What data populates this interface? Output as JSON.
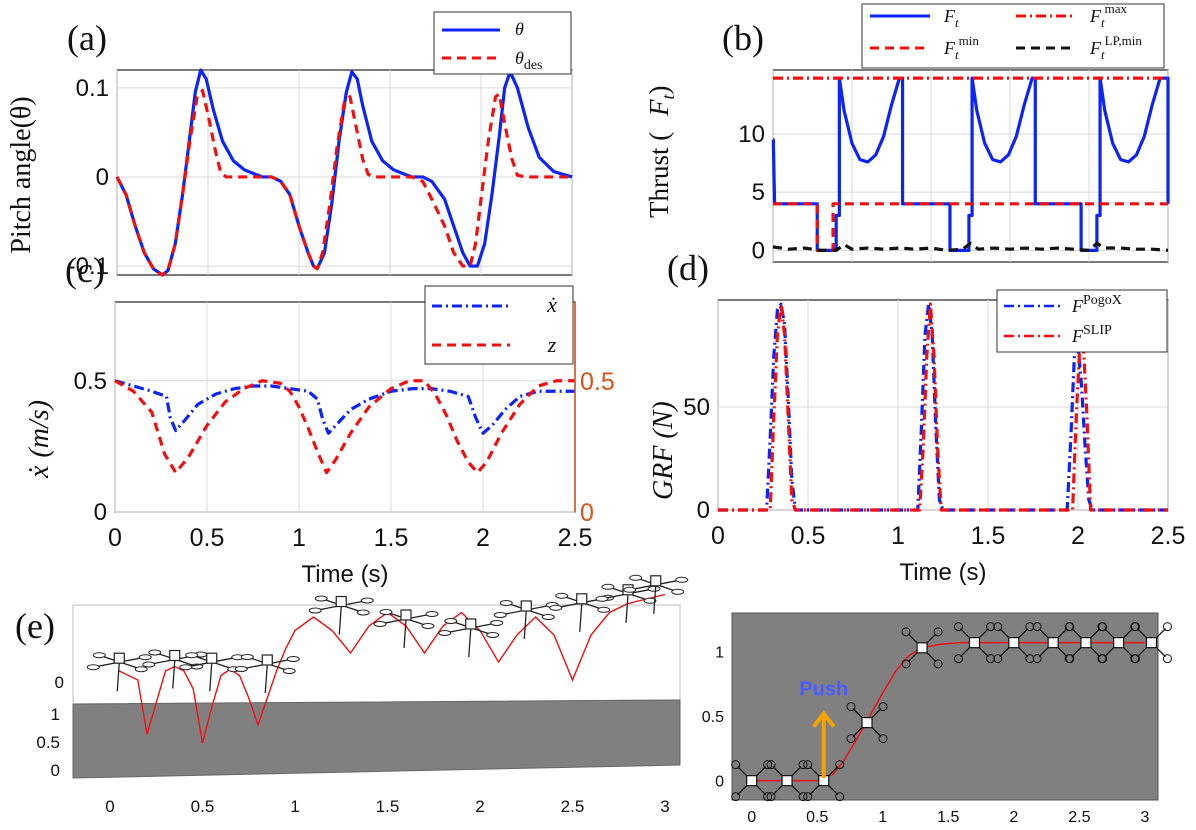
{
  "colors": {
    "blue": "#0b24fb",
    "red": "#f01010",
    "black": "#111111",
    "orange_axis": "#d95319",
    "gray_ground": "#808080",
    "push_text": "#4a5cff",
    "arrow": "#f4a300"
  },
  "chart_data": [
    {
      "id": "a",
      "type": "line",
      "panel_label": "(a)",
      "ylabel": "Pitch angle(θ)",
      "xlabel": "",
      "xlim": [
        0,
        2.5
      ],
      "ylim": [
        -0.11,
        0.12
      ],
      "yticks": [
        "-0.1",
        "0",
        "0.1"
      ],
      "ytick_values": [
        -0.1,
        0,
        0.1
      ],
      "legend": {
        "placement": "top-right",
        "entries": [
          "θ",
          "θdes"
        ]
      },
      "series": [
        {
          "name": "θ",
          "style": "solid",
          "color": "blue",
          "x": [
            0,
            0.05,
            0.1,
            0.15,
            0.2,
            0.25,
            0.28,
            0.32,
            0.36,
            0.4,
            0.43,
            0.46,
            0.49,
            0.53,
            0.58,
            0.64,
            0.7,
            0.76,
            0.8,
            0.85,
            0.9,
            0.95,
            1.0,
            1.05,
            1.08,
            1.1,
            1.14,
            1.18,
            1.22,
            1.26,
            1.29,
            1.32,
            1.35,
            1.4,
            1.46,
            1.52,
            1.58,
            1.62,
            1.68,
            1.73,
            1.8,
            1.85,
            1.9,
            1.94,
            1.98,
            2.02,
            2.06,
            2.1,
            2.13,
            2.16,
            2.2,
            2.26,
            2.32,
            2.4,
            2.5
          ],
          "y": [
            0,
            -0.02,
            -0.055,
            -0.085,
            -0.103,
            -0.11,
            -0.105,
            -0.075,
            -0.02,
            0.045,
            0.095,
            0.12,
            0.11,
            0.075,
            0.04,
            0.018,
            0.008,
            0.003,
            0,
            0,
            -0.005,
            -0.02,
            -0.055,
            -0.085,
            -0.1,
            -0.103,
            -0.085,
            -0.03,
            0.04,
            0.095,
            0.118,
            0.11,
            0.08,
            0.04,
            0.018,
            0.008,
            0.003,
            0,
            0,
            -0.005,
            -0.025,
            -0.055,
            -0.085,
            -0.1,
            -0.1,
            -0.075,
            -0.02,
            0.045,
            0.1,
            0.118,
            0.1,
            0.055,
            0.022,
            0.006,
            0
          ]
        },
        {
          "name": "θdes",
          "style": "dashed",
          "color": "red",
          "x": [
            0,
            0.05,
            0.1,
            0.15,
            0.2,
            0.25,
            0.28,
            0.32,
            0.36,
            0.4,
            0.44,
            0.47,
            0.5,
            0.54,
            0.57,
            0.6,
            0.7,
            0.8,
            0.85,
            0.9,
            0.95,
            1.0,
            1.05,
            1.08,
            1.1,
            1.13,
            1.17,
            1.21,
            1.25,
            1.28,
            1.31,
            1.35,
            1.38,
            1.41,
            1.5,
            1.62,
            1.68,
            1.73,
            1.8,
            1.85,
            1.9,
            1.94,
            1.97,
            2.0,
            2.04,
            2.08,
            2.1,
            2.13,
            2.17,
            2.2,
            2.24,
            2.3,
            2.5
          ],
          "y": [
            0,
            -0.02,
            -0.055,
            -0.085,
            -0.103,
            -0.11,
            -0.105,
            -0.075,
            -0.02,
            0.04,
            0.09,
            0.097,
            0.07,
            0.03,
            0.005,
            0,
            0,
            0,
            0,
            -0.005,
            -0.02,
            -0.055,
            -0.085,
            -0.1,
            -0.103,
            -0.085,
            -0.03,
            0.035,
            0.085,
            0.09,
            0.06,
            0.02,
            0.003,
            0,
            0,
            0,
            -0.005,
            -0.025,
            -0.055,
            -0.085,
            -0.1,
            -0.1,
            -0.075,
            -0.025,
            0.04,
            0.09,
            0.093,
            0.06,
            0.02,
            0.002,
            0,
            0,
            0
          ]
        }
      ]
    },
    {
      "id": "b",
      "type": "line",
      "panel_label": "(b)",
      "ylabel": "Thrust (Ft)",
      "xlabel": "",
      "xlim": [
        0,
        2.5
      ],
      "ylim": [
        -1,
        15.5
      ],
      "yticks": [
        "0",
        "5",
        "10"
      ],
      "ytick_values": [
        0,
        5,
        10
      ],
      "legend": {
        "placement": "top-right",
        "entries": [
          "Ft",
          "Ftmax",
          "Ftmin",
          "FtLP,min"
        ]
      },
      "series": [
        {
          "name": "Ft",
          "style": "solid",
          "color": "blue",
          "x": [
            0,
            0.002,
            0.01,
            0.28,
            0.28,
            0.4,
            0.4,
            0.42,
            0.42,
            0.45,
            0.5,
            0.55,
            0.6,
            0.65,
            0.7,
            0.75,
            0.8,
            0.8,
            0.82,
            0.82,
            1.12,
            1.12,
            1.24,
            1.24,
            1.26,
            1.26,
            1.29,
            1.34,
            1.39,
            1.44,
            1.49,
            1.54,
            1.59,
            1.64,
            1.64,
            1.66,
            1.66,
            1.95,
            1.95,
            2.05,
            2.05,
            2.07,
            2.07,
            2.1,
            2.15,
            2.2,
            2.25,
            2.3,
            2.35,
            2.4,
            2.45,
            2.45,
            2.5,
            2.5
          ],
          "y": [
            9.5,
            9.5,
            4,
            4,
            0,
            0,
            3,
            3,
            14.8,
            12,
            9.2,
            7.8,
            7.6,
            8.2,
            9.8,
            12.5,
            14.8,
            14.8,
            14.8,
            4,
            4,
            0,
            0,
            3,
            3,
            14.8,
            12,
            9.2,
            7.8,
            7.6,
            8.2,
            9.8,
            12.5,
            14.8,
            14.8,
            14.8,
            4,
            4,
            0,
            0,
            3,
            3,
            14.8,
            12,
            9.2,
            7.8,
            7.6,
            8.2,
            9.8,
            12.5,
            14.8,
            14.8,
            14.8,
            4
          ]
        },
        {
          "name": "Ftmax",
          "style": "dashdot",
          "color": "red",
          "x": [
            0,
            2.5
          ],
          "y": [
            14.8,
            14.8
          ]
        },
        {
          "name": "Ftmin",
          "style": "dashed",
          "color": "red",
          "x": [
            0,
            0.28,
            0.28,
            0.38,
            0.38,
            2.5
          ],
          "y": [
            4,
            4,
            0,
            0,
            4,
            4
          ]
        },
        {
          "name": "FtLP,min",
          "style": "dashed",
          "color": "black",
          "x": [
            0,
            0.1,
            0.2,
            0.3,
            0.4,
            0.45,
            0.5,
            0.6,
            0.7,
            0.8,
            0.9,
            1.0,
            1.1,
            1.2,
            1.25,
            1.3,
            1.4,
            1.5,
            1.6,
            1.7,
            1.8,
            1.9,
            2.0,
            2.05,
            2.1,
            2.2,
            2.3,
            2.4,
            2.5
          ],
          "y": [
            0.3,
            0.1,
            0.2,
            0,
            0,
            0.5,
            0.1,
            0.2,
            0.1,
            0.2,
            0.1,
            0.2,
            0,
            0.1,
            0.6,
            0.1,
            0.2,
            0.1,
            0.2,
            0.1,
            0.2,
            0.1,
            0,
            0.6,
            0.2,
            0.2,
            0.1,
            0.1,
            0
          ]
        }
      ]
    },
    {
      "id": "c",
      "type": "line",
      "panel_label": "(c)",
      "ylabel": "ẋ (m/s)",
      "xlabel": "Time (s)",
      "xlim": [
        0,
        2.5
      ],
      "xticks": [
        "0",
        "0.5",
        "1",
        "1.5",
        "2",
        "2.5"
      ],
      "xtick_values": [
        0,
        0.5,
        1,
        1.5,
        2,
        2.5
      ],
      "ylim": [
        0,
        0.8
      ],
      "yticks": [
        "0",
        "0.5"
      ],
      "ytick_values": [
        0,
        0.5
      ],
      "y2ticks": [
        "0",
        "0.5"
      ],
      "legend": {
        "placement": "top-right",
        "entries": [
          "ẋ",
          "z"
        ]
      },
      "series": [
        {
          "name": "ẋ",
          "style": "dashdot",
          "color": "blue",
          "x": [
            0,
            0.1,
            0.2,
            0.28,
            0.3,
            0.33,
            0.38,
            0.45,
            0.55,
            0.65,
            0.75,
            0.85,
            0.95,
            1.05,
            1.1,
            1.13,
            1.16,
            1.2,
            1.28,
            1.38,
            1.5,
            1.62,
            1.72,
            1.82,
            1.92,
            1.96,
            2.0,
            2.05,
            2.12,
            2.2,
            2.3,
            2.5
          ],
          "y": [
            0.5,
            0.48,
            0.46,
            0.44,
            0.36,
            0.31,
            0.35,
            0.41,
            0.45,
            0.47,
            0.48,
            0.48,
            0.47,
            0.46,
            0.43,
            0.35,
            0.3,
            0.33,
            0.39,
            0.43,
            0.46,
            0.47,
            0.47,
            0.46,
            0.44,
            0.36,
            0.3,
            0.33,
            0.39,
            0.44,
            0.46,
            0.46
          ]
        },
        {
          "name": "z",
          "style": "dashed",
          "color": "red",
          "x": [
            0,
            0.1,
            0.2,
            0.27,
            0.33,
            0.4,
            0.5,
            0.6,
            0.7,
            0.8,
            0.9,
            0.95,
            1.0,
            1.05,
            1.1,
            1.15,
            1.2,
            1.28,
            1.38,
            1.5,
            1.6,
            1.68,
            1.74,
            1.8,
            1.86,
            1.92,
            1.97,
            2.02,
            2.1,
            2.2,
            2.3,
            2.4,
            2.5
          ],
          "y": [
            0.5,
            0.46,
            0.38,
            0.22,
            0.15,
            0.21,
            0.33,
            0.42,
            0.47,
            0.5,
            0.49,
            0.46,
            0.4,
            0.32,
            0.23,
            0.15,
            0.2,
            0.3,
            0.4,
            0.47,
            0.5,
            0.5,
            0.45,
            0.37,
            0.27,
            0.19,
            0.15,
            0.19,
            0.3,
            0.41,
            0.48,
            0.5,
            0.5
          ]
        }
      ]
    },
    {
      "id": "d",
      "type": "line",
      "panel_label": "(d)",
      "ylabel": "GRF (N)",
      "xlabel": "Time (s)",
      "xlim": [
        0,
        2.5
      ],
      "xticks": [
        "0",
        "0.5",
        "1",
        "1.5",
        "2",
        "2.5"
      ],
      "xtick_values": [
        0,
        0.5,
        1,
        1.5,
        2,
        2.5
      ],
      "ylim": [
        0,
        102
      ],
      "yticks": [
        "0",
        "50"
      ],
      "ytick_values": [
        0,
        50
      ],
      "legend": {
        "placement": "top-right",
        "entries": [
          "FPogoX",
          "FSLIP"
        ]
      },
      "series": [
        {
          "name": "FPogoX",
          "style": "dashdot",
          "color": "blue",
          "x": [
            0,
            0.27,
            0.29,
            0.31,
            0.33,
            0.35,
            0.37,
            0.39,
            0.41,
            0.43,
            1.11,
            1.13,
            1.15,
            1.17,
            1.19,
            1.21,
            1.23,
            1.25,
            1.94,
            1.96,
            1.98,
            2.0,
            2.02,
            2.04,
            2.06,
            2.08,
            2.5
          ],
          "y": [
            0,
            0,
            35,
            75,
            97,
            100,
            90,
            55,
            15,
            0,
            0,
            40,
            85,
            100,
            85,
            40,
            5,
            0,
            0,
            35,
            75,
            80,
            60,
            30,
            5,
            0,
            0
          ]
        },
        {
          "name": "FSLIP",
          "style": "dashdot",
          "color": "red",
          "x": [
            0,
            0.29,
            0.31,
            0.33,
            0.35,
            0.37,
            0.39,
            0.41,
            0.43,
            1.12,
            1.14,
            1.16,
            1.18,
            1.2,
            1.22,
            1.24,
            1.97,
            1.99,
            2.01,
            2.03,
            2.05,
            2.07,
            2.5
          ],
          "y": [
            0,
            0,
            45,
            85,
            100,
            85,
            45,
            5,
            0,
            0,
            30,
            75,
            100,
            75,
            30,
            0,
            0,
            45,
            80,
            80,
            45,
            0,
            0
          ]
        }
      ]
    },
    {
      "id": "e-left",
      "type": "line",
      "panel_label": "(e)",
      "xlim": [
        0,
        3
      ],
      "xticks": [
        "0",
        "0.5",
        "1",
        "1.5",
        "2",
        "2.5",
        "3"
      ],
      "xtick_values": [
        0,
        0.5,
        1,
        1.5,
        2,
        2.5,
        3
      ],
      "ytick_labels_ground": [
        "1",
        "0.5",
        "0"
      ],
      "ytick_label_upper": "0",
      "description_series": "hopping trajectory over ground step",
      "series": [
        {
          "name": "trajectory",
          "color": "red",
          "style": "solid",
          "x": [
            0.05,
            0.15,
            0.2,
            0.25,
            0.3,
            0.35,
            0.4,
            0.45,
            0.5,
            0.55,
            0.6,
            0.65,
            0.7,
            0.75,
            0.8,
            0.85,
            0.9,
            0.95,
            1.0,
            1.1,
            1.2,
            1.3,
            1.4,
            1.5,
            1.6,
            1.7,
            1.8,
            1.9,
            2.0,
            2.1,
            2.2,
            2.3,
            2.4,
            2.5,
            2.6,
            2.7,
            2.8,
            2.9,
            3.0
          ],
          "y": [
            0.1,
            0.0,
            -0.6,
            -0.25,
            0.1,
            0.15,
            0.1,
            -0.1,
            -0.7,
            -0.3,
            0.05,
            0.12,
            0.05,
            -0.2,
            -0.5,
            -0.2,
            0.1,
            0.35,
            0.55,
            0.7,
            0.55,
            0.3,
            0.6,
            0.75,
            0.6,
            0.3,
            0.6,
            0.75,
            0.55,
            0.2,
            0.5,
            0.7,
            0.5,
            0.0,
            0.5,
            0.75,
            0.85,
            0.9,
            0.95
          ]
        }
      ]
    },
    {
      "id": "e-right",
      "type": "line",
      "push_label": "Push",
      "xlim": [
        -0.15,
        3.1
      ],
      "xticks": [
        "0",
        "0.5",
        "1",
        "1.5",
        "2",
        "2.5",
        "3"
      ],
      "xtick_values": [
        0,
        0.5,
        1,
        1.5,
        2,
        2.5,
        3
      ],
      "ylim": [
        -0.15,
        1.3
      ],
      "yticks": [
        "0",
        "0.5",
        "1"
      ],
      "ytick_values": [
        0,
        0.5,
        1
      ],
      "series": [
        {
          "name": "trajectory",
          "color": "red",
          "style": "solid",
          "x": [
            0,
            0.5,
            0.62,
            0.7,
            0.8,
            0.9,
            1.0,
            1.1,
            1.2,
            1.3,
            1.45,
            1.6,
            1.8,
            2.0,
            2.5,
            3.0
          ],
          "y": [
            0,
            0,
            0.05,
            0.15,
            0.32,
            0.5,
            0.68,
            0.85,
            0.97,
            1.03,
            1.06,
            1.07,
            1.07,
            1.07,
            1.07,
            1.07
          ]
        }
      ],
      "markers_x": [
        0,
        0.27,
        0.55,
        0.88,
        1.3,
        1.7,
        2.0,
        2.3,
        2.55,
        2.8,
        3.05
      ],
      "markers_y": [
        0,
        0,
        0,
        0.45,
        1.03,
        1.07,
        1.07,
        1.07,
        1.07,
        1.07,
        1.07
      ]
    }
  ]
}
